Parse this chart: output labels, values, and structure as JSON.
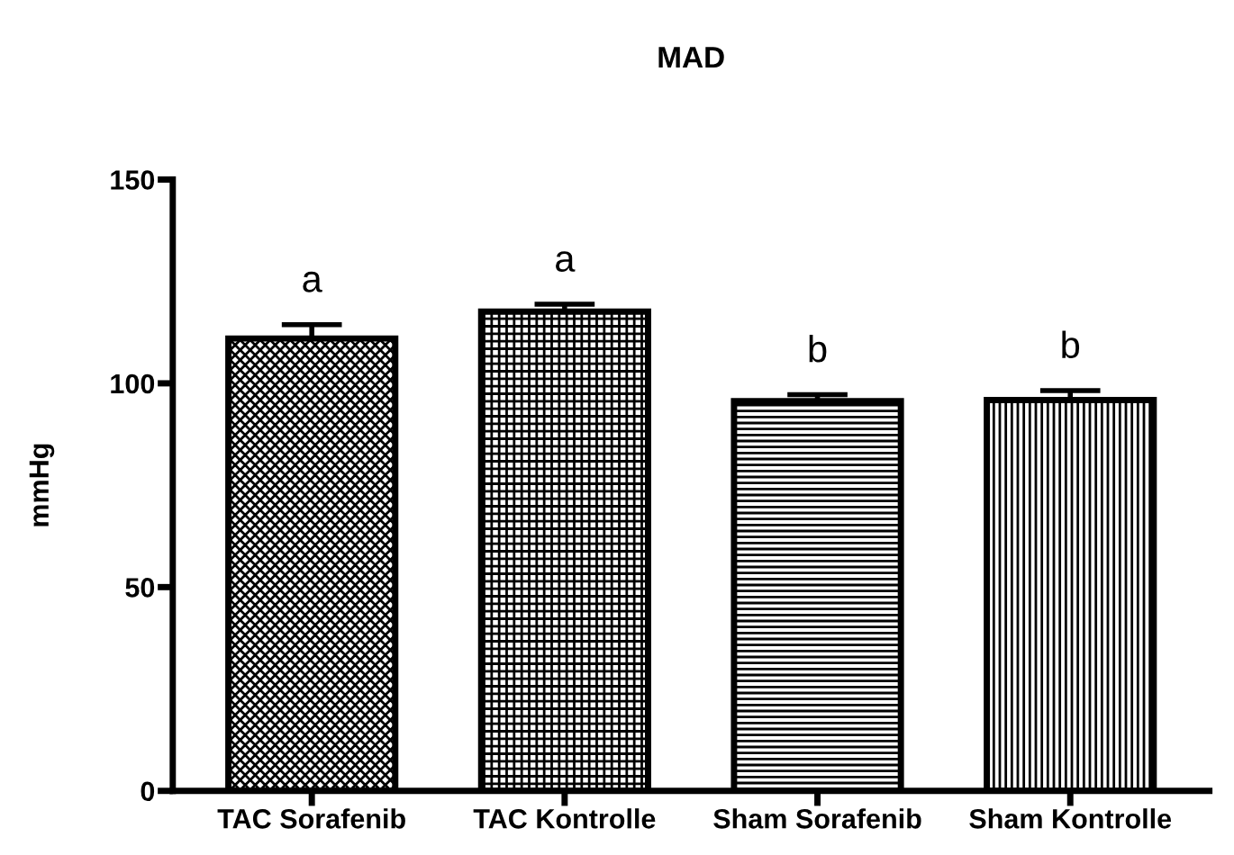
{
  "chart_data": {
    "type": "bar",
    "title": "MAD",
    "ylabel": "mmHg",
    "categories": [
      "TAC Sorafenib",
      "TAC Kontrolle",
      "Sham Sorafenib",
      "Sham Kontrolle"
    ],
    "values": [
      111,
      117.6,
      95.6,
      95.9
    ],
    "errors": [
      3.4,
      1.8,
      1.6,
      2.3
    ],
    "ylim": [
      0,
      150
    ],
    "yticks": [
      0,
      50,
      100,
      150
    ],
    "grid": false,
    "legend": false,
    "annotations": [
      {
        "text": "a",
        "x": "TAC Sorafenib",
        "y": 114.4
      },
      {
        "text": "a",
        "x": "TAC Kontrolle",
        "y": 119.4
      },
      {
        "text": "b",
        "x": "Sham Sorafenib",
        "y": 97.2
      },
      {
        "text": "b",
        "x": "Sham Kontrolle",
        "y": 98.2
      }
    ]
  }
}
